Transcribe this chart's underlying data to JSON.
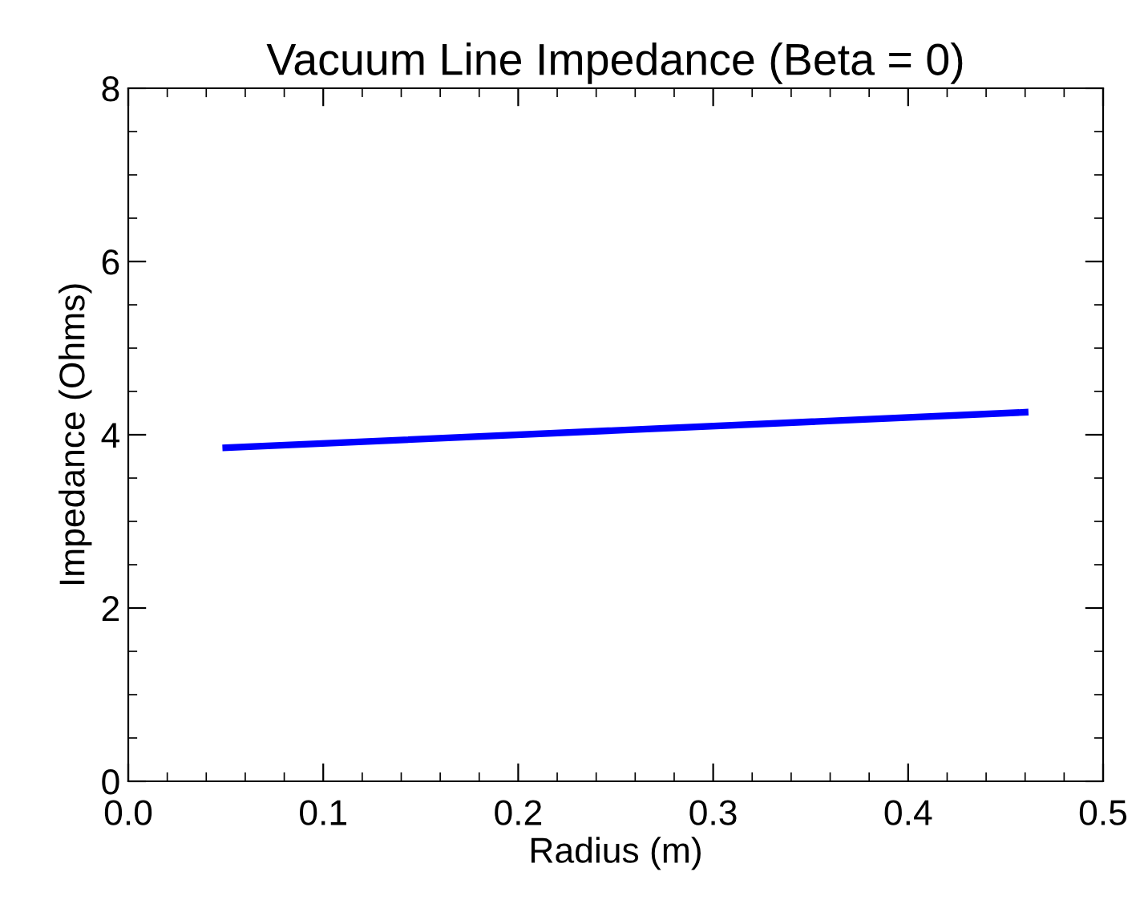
{
  "chart_data": {
    "type": "line",
    "title": "Vacuum Line Impedance (Beta = 0)",
    "xlabel": "Radius (m)",
    "ylabel": "Impedance (Ohms)",
    "series": [
      {
        "color": "#0000ff",
        "x": [
          0.05,
          0.46
        ],
        "values": [
          3.85,
          4.26
        ]
      }
    ],
    "xlim": [
      0.0,
      0.5
    ],
    "xticks": [
      {
        "value": 0.0,
        "label": "0.0"
      },
      0.1,
      0.2,
      0.3,
      0.4,
      0.5
    ],
    "ylim": [
      0,
      8
    ],
    "yticks": [
      0,
      2,
      4,
      6,
      8
    ],
    "grid": false,
    "legend": false,
    "line_style": "solid",
    "marker": "none"
  }
}
